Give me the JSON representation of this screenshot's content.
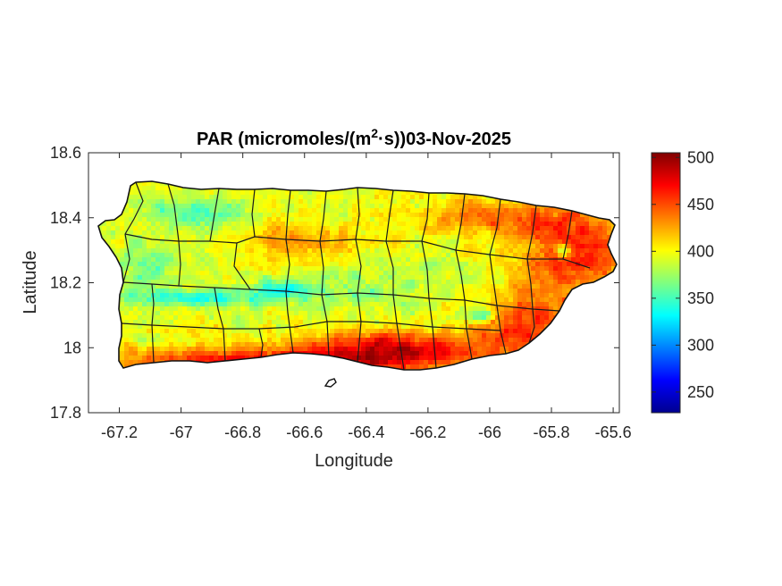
{
  "chart_data": {
    "type": "heatmap",
    "title": {
      "prefix": "PAR (micromoles/(m",
      "superscript": "2",
      "suffix": "·s))03-Nov-2025"
    },
    "xlabel": "Longitude",
    "ylabel": "Latitude",
    "xlim": [
      -67.3,
      -65.58
    ],
    "ylim": [
      17.8,
      18.6
    ],
    "xticks": [
      -67.2,
      -67,
      -66.8,
      -66.6,
      -66.4,
      -66.2,
      -66,
      -65.8,
      -65.6
    ],
    "xtick_labels": [
      "-67.2",
      "-67",
      "-66.8",
      "-66.6",
      "-66.4",
      "-66.2",
      "-66",
      "-65.8",
      "-65.6"
    ],
    "yticks": [
      17.8,
      18,
      18.2,
      18.4,
      18.6
    ],
    "ytick_labels": [
      "17.8",
      "18",
      "18.2",
      "18.4",
      "18.6"
    ],
    "colorbar": {
      "colormap": "jet",
      "clim": [
        228,
        505
      ],
      "ticks": [
        250,
        300,
        350,
        400,
        450,
        500
      ],
      "tick_labels": [
        "250",
        "300",
        "350",
        "400",
        "450",
        "500"
      ]
    },
    "grid": false
  }
}
